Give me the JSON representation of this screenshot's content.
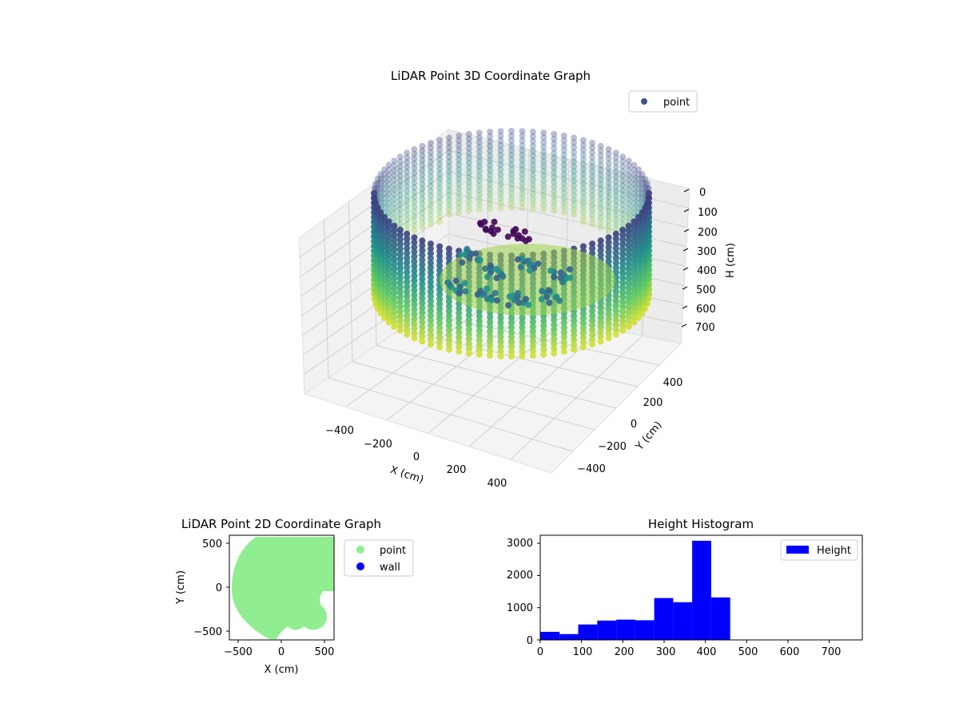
{
  "colors": {
    "viridis": [
      "#440154",
      "#3b528b",
      "#21918c",
      "#5ec962",
      "#fde725"
    ],
    "point2d": "#90ee90",
    "wall": "#0000ff",
    "hist": "#0000ff",
    "legend_point3d": "#3b528b"
  },
  "chart_data": [
    {
      "type": "scatter3d",
      "title": "LiDAR Point 3D Coordinate Graph",
      "xlabel": "X (cm)",
      "ylabel": "Y (cm)",
      "zlabel": "H (cm)",
      "xticks": [
        "−400",
        "−200",
        "0",
        "200",
        "400"
      ],
      "yticks": [
        "−400",
        "−200",
        "0",
        "200",
        "400"
      ],
      "zticks": [
        "0",
        "100",
        "200",
        "300",
        "400",
        "500",
        "600",
        "700"
      ],
      "zlim": [
        0,
        750
      ],
      "z_inverted": true,
      "legend": [
        "point"
      ],
      "legend_position": "upper right",
      "colormap": "viridis",
      "series": [
        {
          "name": "point",
          "shape": "ring wall with inner hollow",
          "x_range": [
            -520,
            520
          ],
          "y_range": [
            -520,
            520
          ],
          "h_range": [
            0,
            700
          ]
        }
      ]
    },
    {
      "type": "scatter",
      "title": "LiDAR Point 2D Coordinate Graph",
      "xlabel": "X (cm)",
      "ylabel": "Y (cm)",
      "xticks": [
        "−500",
        "0",
        "500"
      ],
      "yticks": [
        "500",
        "0",
        "−500"
      ],
      "xlim": [
        -600,
        600
      ],
      "ylim": [
        -600,
        600
      ],
      "legend": [
        "point",
        "wall"
      ],
      "legend_position": "outside right",
      "series": [
        {
          "name": "point",
          "color": "#90ee90",
          "shape": "filled disc",
          "center": [
            0,
            0
          ],
          "radius": 560
        },
        {
          "name": "wall",
          "color": "#0000ff",
          "points": []
        }
      ]
    },
    {
      "type": "bar",
      "title": "Height Histogram",
      "xticks": [
        "0",
        "100",
        "200",
        "300",
        "400",
        "500",
        "600",
        "700"
      ],
      "yticks": [
        "0",
        "1000",
        "2000",
        "3000"
      ],
      "xlim": [
        0,
        780
      ],
      "ylim": [
        0,
        3250
      ],
      "legend": [
        "Height"
      ],
      "legend_position": "upper right",
      "bin_edges": [
        0,
        47,
        92,
        138,
        184,
        230,
        276,
        322,
        368,
        414,
        460
      ],
      "values": [
        250,
        180,
        480,
        600,
        630,
        610,
        1300,
        1170,
        3080,
        1320
      ]
    }
  ]
}
